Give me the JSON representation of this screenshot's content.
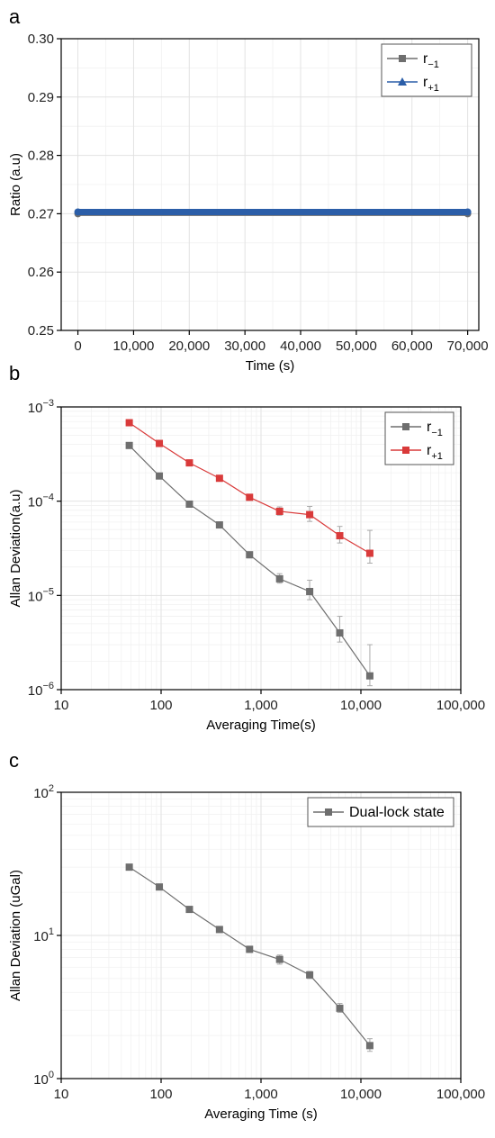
{
  "chart_data": [
    {
      "panel": "a",
      "type": "scatter",
      "xlabel": "Time (s)",
      "ylabel": "Ratio (a.u)",
      "xlim": [
        -3000,
        72000
      ],
      "ylim": [
        0.25,
        0.3
      ],
      "xticks": [
        "0",
        "10,000",
        "20,000",
        "30,000",
        "40,000",
        "50,000",
        "60,000",
        "70,000"
      ],
      "yticks": [
        "0.25",
        "0.26",
        "0.27",
        "0.28",
        "0.29",
        "0.30"
      ],
      "grid": true,
      "legend_position": "top-right",
      "series": [
        {
          "name_main": "r",
          "name_sub": "−1",
          "marker": "square",
          "color": "#6e6e6e",
          "x": [
            0,
            70000
          ],
          "y": [
            0.27,
            0.27
          ]
        },
        {
          "name_main": "r",
          "name_sub": "+1",
          "marker": "triangle",
          "color": "#2b5ea8",
          "x": [
            0,
            70000
          ],
          "y": [
            0.2703,
            0.2703
          ]
        }
      ]
    },
    {
      "panel": "b",
      "type": "line",
      "xscale": "log",
      "yscale": "log",
      "xlabel": "Averaging Time(s)",
      "ylabel": "Allan Deviation(a.u)",
      "xlim": [
        10,
        100000
      ],
      "ylim": [
        1e-06,
        0.001
      ],
      "xticks": [
        "10",
        "100",
        "1,000",
        "10,000",
        "100,000"
      ],
      "yticks": [
        {
          "base": "10",
          "exp": "−6"
        },
        {
          "base": "10",
          "exp": "−5"
        },
        {
          "base": "10",
          "exp": "−4"
        },
        {
          "base": "10",
          "exp": "−3"
        }
      ],
      "grid": true,
      "legend_position": "top-right",
      "x": [
        48,
        96,
        192,
        384,
        768,
        1536,
        3072,
        6144,
        12288
      ],
      "series": [
        {
          "name_main": "r",
          "name_sub": "−1",
          "color": "#6e6e6e",
          "values": [
            0.00039,
            0.000185,
            9.3e-05,
            5.6e-05,
            2.7e-05,
            1.5e-05,
            1.1e-05,
            4e-06,
            1.4e-06
          ],
          "err_hi": [
            8e-06,
            6e-06,
            4e-06,
            3e-06,
            2e-06,
            2e-06,
            3.5e-06,
            2e-06,
            1.6e-06
          ],
          "err_lo": [
            8e-06,
            6e-06,
            4e-06,
            3e-06,
            2e-06,
            1.5e-06,
            2e-06,
            8e-07,
            3e-07
          ]
        },
        {
          "name_main": "r",
          "name_sub": "+1",
          "color": "#d93a3a",
          "values": [
            0.00068,
            0.00041,
            0.000255,
            0.000175,
            0.00011,
            7.8e-05,
            7.2e-05,
            4.3e-05,
            2.8e-05
          ],
          "err_hi": [
            1e-05,
            8e-06,
            6e-06,
            5e-06,
            6e-06,
            9e-06,
            1.6e-05,
            1.1e-05,
            2.1e-05
          ],
          "err_lo": [
            1e-05,
            8e-06,
            6e-06,
            5e-06,
            5e-06,
            7e-06,
            1.1e-05,
            7e-06,
            6e-06
          ]
        }
      ]
    },
    {
      "panel": "c",
      "type": "line",
      "xscale": "log",
      "yscale": "log",
      "xlabel": "Averaging Time (s)",
      "ylabel": "Allan Deviation (uGal)",
      "xlim": [
        10,
        100000
      ],
      "ylim": [
        1,
        100
      ],
      "xticks": [
        "10",
        "100",
        "1,000",
        "10,000",
        "100,000"
      ],
      "yticks": [
        {
          "base": "10",
          "exp": "0"
        },
        {
          "base": "10",
          "exp": "1"
        },
        {
          "base": "10",
          "exp": "2"
        }
      ],
      "grid": true,
      "legend_position": "top-right",
      "x": [
        48,
        96,
        192,
        384,
        768,
        1536,
        3072,
        6144,
        12288
      ],
      "series": [
        {
          "name_main": "Dual-lock state",
          "name_sub": "",
          "color": "#6e6e6e",
          "values": [
            30,
            21.8,
            15.2,
            11,
            8,
            6.8,
            5.3,
            3.1,
            1.7
          ],
          "err_hi": [
            0.5,
            0.4,
            0.3,
            0.3,
            0.4,
            0.5,
            0.3,
            0.25,
            0.2
          ],
          "err_lo": [
            0.5,
            0.4,
            0.3,
            0.3,
            0.4,
            0.5,
            0.3,
            0.2,
            0.15
          ]
        }
      ]
    }
  ]
}
